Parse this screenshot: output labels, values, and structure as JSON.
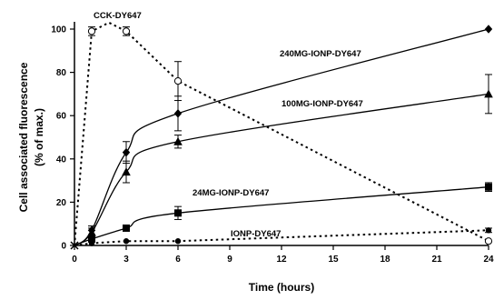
{
  "chart_data": {
    "type": "line",
    "xlabel": "Time (hours)",
    "ylabel_line1": "Cell associated fluorescence",
    "ylabel_line2": "(% of max.)",
    "xlim": [
      0,
      24
    ],
    "ylim": [
      0,
      100
    ],
    "xticks": [
      0,
      3,
      6,
      9,
      12,
      15,
      18,
      21,
      24
    ],
    "yticks": [
      0,
      20,
      40,
      60,
      80,
      100
    ],
    "grid": false,
    "series": [
      {
        "name": "CCK-DY647",
        "line_style": "dotted",
        "marker": "open-circle",
        "x": [
          0,
          1,
          2,
          3,
          6,
          24
        ],
        "y": [
          0,
          99,
          103,
          99,
          76,
          2
        ],
        "err": [
          0,
          2,
          0,
          2,
          9,
          0
        ],
        "marker_at": [
          0,
          1,
          3,
          4,
          5
        ],
        "curve": "linear"
      },
      {
        "name": "240MG-IONP-DY647",
        "line_style": "solid",
        "marker": "filled-diamond",
        "x": [
          0,
          1,
          3,
          6,
          24
        ],
        "y": [
          0,
          7,
          43,
          61,
          100
        ],
        "err": [
          0,
          2,
          5,
          8,
          0
        ],
        "curve": "smooth"
      },
      {
        "name": "100MG-IONP-DY647",
        "line_style": "solid",
        "marker": "filled-triangle",
        "x": [
          0,
          1,
          3,
          6,
          24
        ],
        "y": [
          0,
          6,
          34,
          48,
          70
        ],
        "err": [
          0,
          2,
          5,
          3,
          9
        ],
        "curve": "smooth"
      },
      {
        "name": "24MG-IONP-DY647",
        "line_style": "solid",
        "marker": "filled-square",
        "x": [
          0,
          1,
          3,
          6,
          24
        ],
        "y": [
          0,
          3,
          8,
          15,
          27
        ],
        "err": [
          0,
          1,
          1,
          3,
          2
        ],
        "curve": "smooth"
      },
      {
        "name": "IONP-DY647",
        "line_style": "dotted",
        "marker": "filled-circle",
        "x": [
          0,
          1,
          3,
          6,
          24
        ],
        "y": [
          0,
          1,
          2,
          2,
          7
        ],
        "err": [
          0,
          0,
          0,
          0,
          1
        ],
        "curve": "linear"
      }
    ]
  }
}
